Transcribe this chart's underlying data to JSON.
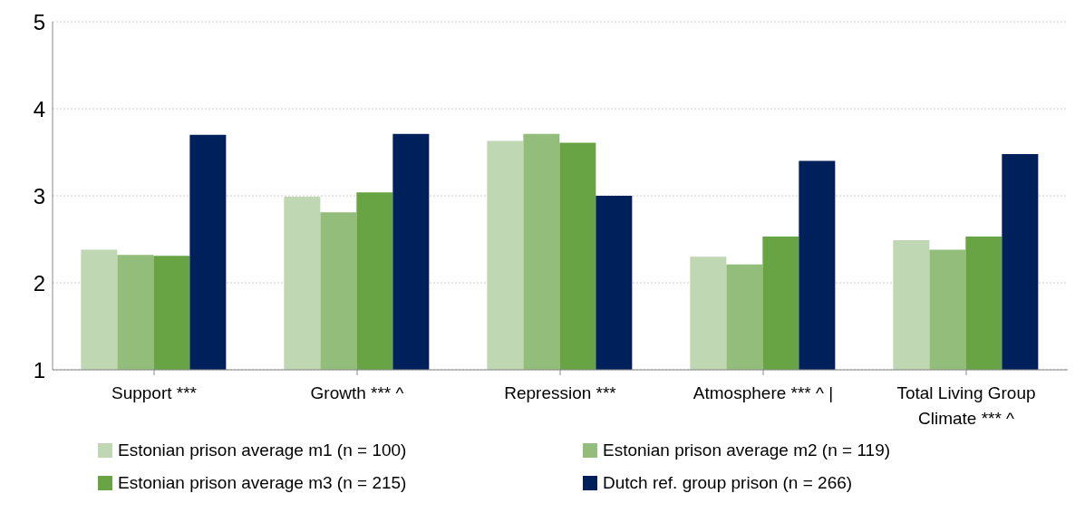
{
  "chart_data": {
    "type": "bar",
    "categories": [
      "Support ***",
      "Growth *** ^",
      "Repression ***",
      "Atmosphere *** ^ |",
      "Total Living Group Climate *** ^"
    ],
    "series": [
      {
        "name": "Estonian prison average m1 (n = 100)",
        "color": "#c0d7b3",
        "values": [
          2.38,
          2.99,
          3.63,
          2.3,
          2.49
        ]
      },
      {
        "name": "Estonian prison average m2 (n = 119)",
        "color": "#93bd7a",
        "values": [
          2.32,
          2.81,
          3.71,
          2.21,
          2.38
        ]
      },
      {
        "name": "Estonian prison average m3 (n = 215)",
        "color": "#68a444",
        "values": [
          2.31,
          3.04,
          3.61,
          2.53,
          2.53
        ]
      },
      {
        "name": "Dutch ref. group prison (n = 266)",
        "color": "#00205b",
        "values": [
          3.7,
          3.71,
          3.0,
          3.4,
          3.48
        ]
      }
    ],
    "ylim": [
      1,
      5
    ],
    "yticks": [
      1,
      2,
      3,
      4,
      5
    ],
    "grid": "y",
    "legend": "bottom"
  }
}
